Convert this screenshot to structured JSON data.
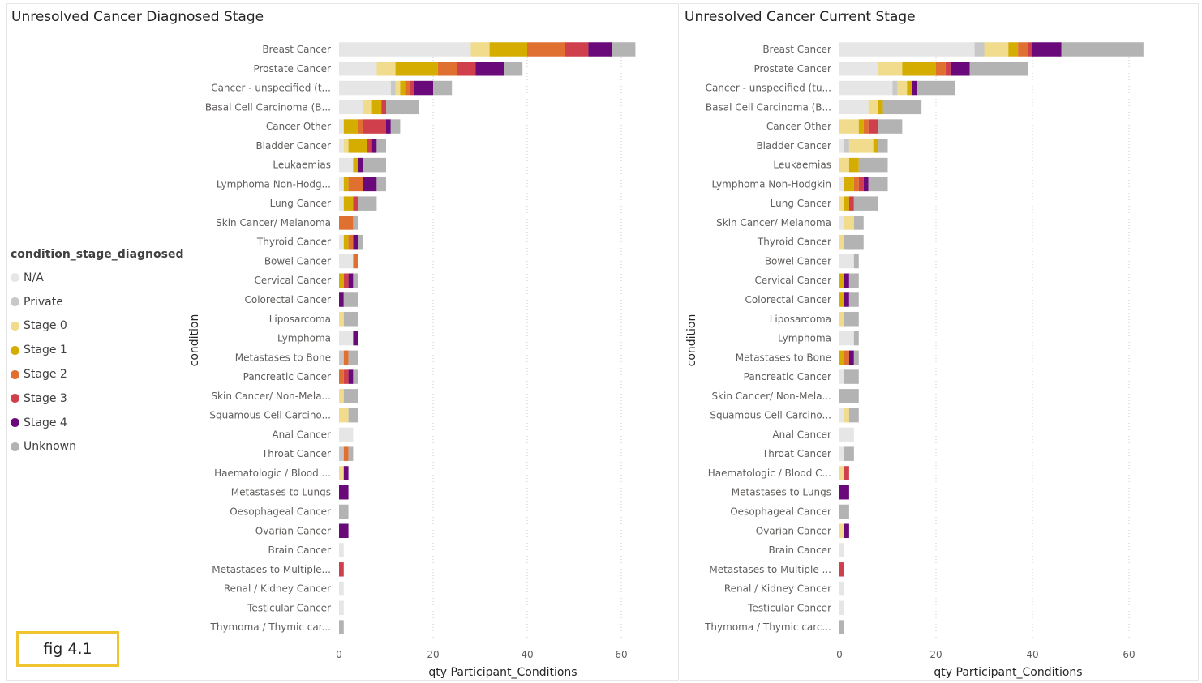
{
  "figure_label": "fig 4.1",
  "legend": {
    "title": "condition_stage_diagnosed",
    "items": [
      {
        "label": "N/A",
        "color": "#e6e6e6"
      },
      {
        "label": "Private",
        "color": "#c8c8c8"
      },
      {
        "label": "Stage 0",
        "color": "#f0dc8c"
      },
      {
        "label": "Stage 1",
        "color": "#d4ad00"
      },
      {
        "label": "Stage 2",
        "color": "#e07030"
      },
      {
        "label": "Stage 3",
        "color": "#d0404c"
      },
      {
        "label": "Stage 4",
        "color": "#6a0a7a"
      },
      {
        "label": "Unknown",
        "color": "#b3b3b3"
      }
    ]
  },
  "chart_data": [
    {
      "type": "bar",
      "orientation": "horizontal",
      "stacked": true,
      "title": "Unresolved Cancer Diagnosed Stage",
      "xlabel": "qty Participant_Conditions",
      "ylabel": "condition",
      "xlim": [
        0,
        63
      ],
      "xticks": [
        0,
        20,
        40,
        60
      ],
      "series_names": [
        "N/A",
        "Private",
        "Stage 0",
        "Stage 1",
        "Stage 2",
        "Stage 3",
        "Stage 4",
        "Unknown"
      ],
      "categories": [
        "Breast Cancer",
        "Prostate Cancer",
        "Cancer - unspecified (t...",
        "Basal Cell Carcinoma (B...",
        "Cancer Other",
        "Bladder Cancer",
        "Leukaemias",
        "Lymphoma Non-Hodg...",
        "Lung Cancer",
        "Skin Cancer/ Melanoma",
        "Thyroid Cancer",
        "Bowel Cancer",
        "Cervical Cancer",
        "Colorectal Cancer",
        "Liposarcoma",
        "Lymphoma",
        "Metastases to Bone",
        "Pancreatic Cancer",
        "Skin Cancer/ Non-Mela...",
        "Squamous Cell Carcino...",
        "Anal Cancer",
        "Throat Cancer",
        "Haematologic / Blood ...",
        "Metastases to Lungs",
        "Oesophageal Cancer",
        "Ovarian Cancer",
        "Brain Cancer",
        "Metastases to Multiple...",
        "Renal / Kidney Cancer",
        "Testicular Cancer",
        "Thymoma / Thymic car..."
      ],
      "values": [
        [
          28,
          0,
          4,
          8,
          8,
          5,
          5,
          5
        ],
        [
          8,
          0,
          4,
          9,
          4,
          4,
          6,
          4
        ],
        [
          11,
          1,
          1,
          1,
          1,
          1,
          4,
          4
        ],
        [
          5,
          0,
          2,
          2,
          0,
          1,
          0,
          7
        ],
        [
          1,
          0,
          0,
          3,
          1,
          5,
          1,
          2
        ],
        [
          1,
          0,
          1,
          4,
          0,
          1,
          1,
          2
        ],
        [
          3,
          0,
          0,
          1,
          0,
          0,
          1,
          5
        ],
        [
          1,
          0,
          0,
          1,
          3,
          0,
          3,
          2
        ],
        [
          1,
          0,
          0,
          2,
          0,
          1,
          0,
          4
        ],
        [
          0,
          0,
          0,
          0,
          3,
          0,
          0,
          1
        ],
        [
          1,
          0,
          0,
          1,
          1,
          0,
          1,
          1
        ],
        [
          3,
          0,
          0,
          0,
          1,
          0,
          0,
          0
        ],
        [
          0,
          0,
          0,
          1,
          0,
          1,
          1,
          1
        ],
        [
          0,
          0,
          0,
          0,
          0,
          0,
          1,
          3
        ],
        [
          0,
          0,
          1,
          0,
          0,
          0,
          0,
          3
        ],
        [
          3,
          0,
          0,
          0,
          0,
          0,
          1,
          0
        ],
        [
          0,
          1,
          0,
          0,
          1,
          0,
          0,
          2
        ],
        [
          0,
          0,
          0,
          0,
          1,
          1,
          1,
          1
        ],
        [
          0,
          0,
          1,
          0,
          0,
          0,
          0,
          3
        ],
        [
          0,
          0,
          2,
          0,
          0,
          0,
          0,
          2
        ],
        [
          3,
          0,
          0,
          0,
          0,
          0,
          0,
          0
        ],
        [
          0,
          1,
          0,
          0,
          1,
          0,
          0,
          1
        ],
        [
          0,
          0,
          1,
          0,
          0,
          0,
          1,
          0
        ],
        [
          0,
          0,
          0,
          0,
          0,
          0,
          2,
          0
        ],
        [
          0,
          0,
          0,
          0,
          0,
          0,
          0,
          2
        ],
        [
          0,
          0,
          0,
          0,
          0,
          0,
          2,
          0
        ],
        [
          1,
          0,
          0,
          0,
          0,
          0,
          0,
          0
        ],
        [
          0,
          0,
          0,
          0,
          0,
          1,
          0,
          0
        ],
        [
          1,
          0,
          0,
          0,
          0,
          0,
          0,
          0
        ],
        [
          1,
          0,
          0,
          0,
          0,
          0,
          0,
          0
        ],
        [
          0,
          0,
          0,
          0,
          0,
          0,
          0,
          1
        ]
      ]
    },
    {
      "type": "bar",
      "orientation": "horizontal",
      "stacked": true,
      "title": "Unresolved Cancer Current Stage",
      "xlabel": "qty Participant_Conditions",
      "ylabel": "condition",
      "xlim": [
        0,
        63
      ],
      "xticks": [
        0,
        20,
        40,
        60
      ],
      "series_names": [
        "N/A",
        "Private",
        "Stage 0",
        "Stage 1",
        "Stage 2",
        "Stage 3",
        "Stage 4",
        "Unknown"
      ],
      "categories": [
        "Breast Cancer",
        "Prostate Cancer",
        "Cancer - unspecified (tu...",
        "Basal Cell Carcinoma (B...",
        "Cancer Other",
        "Bladder Cancer",
        "Leukaemias",
        "Lymphoma Non-Hodgkin",
        "Lung Cancer",
        "Skin Cancer/ Melanoma",
        "Thyroid Cancer",
        "Bowel Cancer",
        "Cervical Cancer",
        "Colorectal Cancer",
        "Liposarcoma",
        "Lymphoma",
        "Metastases to Bone",
        "Pancreatic Cancer",
        "Skin Cancer/ Non-Mela...",
        "Squamous Cell Carcino...",
        "Anal Cancer",
        "Throat Cancer",
        "Haematologic / Blood C...",
        "Metastases to Lungs",
        "Oesophageal Cancer",
        "Ovarian Cancer",
        "Brain Cancer",
        "Metastases to Multiple ...",
        "Renal / Kidney Cancer",
        "Testicular Cancer",
        "Thymoma / Thymic carc..."
      ],
      "values": [
        [
          28,
          2,
          5,
          2,
          2,
          1,
          6,
          17
        ],
        [
          8,
          0,
          5,
          7,
          2,
          1,
          4,
          12
        ],
        [
          11,
          1,
          2,
          1,
          0,
          0,
          1,
          8
        ],
        [
          6,
          0,
          2,
          1,
          0,
          0,
          0,
          8
        ],
        [
          0,
          0,
          4,
          1,
          1,
          2,
          0,
          5
        ],
        [
          1,
          1,
          5,
          1,
          0,
          0,
          0,
          2
        ],
        [
          0,
          0,
          2,
          2,
          0,
          0,
          0,
          6
        ],
        [
          1,
          0,
          0,
          2,
          1,
          1,
          1,
          4
        ],
        [
          0,
          0,
          1,
          1,
          0,
          1,
          0,
          5
        ],
        [
          1,
          0,
          2,
          0,
          0,
          0,
          0,
          2
        ],
        [
          0,
          0,
          1,
          0,
          0,
          0,
          0,
          4
        ],
        [
          3,
          0,
          0,
          0,
          0,
          0,
          0,
          1
        ],
        [
          0,
          0,
          0,
          1,
          0,
          0,
          1,
          2
        ],
        [
          0,
          0,
          0,
          1,
          0,
          0,
          1,
          2
        ],
        [
          0,
          0,
          1,
          0,
          0,
          0,
          0,
          3
        ],
        [
          3,
          0,
          0,
          0,
          0,
          0,
          0,
          1
        ],
        [
          0,
          0,
          0,
          1,
          1,
          0,
          1,
          1
        ],
        [
          1,
          0,
          0,
          0,
          0,
          0,
          0,
          3
        ],
        [
          0,
          0,
          0,
          0,
          0,
          0,
          0,
          4
        ],
        [
          1,
          0,
          1,
          0,
          0,
          0,
          0,
          2
        ],
        [
          3,
          0,
          0,
          0,
          0,
          0,
          0,
          0
        ],
        [
          1,
          0,
          0,
          0,
          0,
          0,
          0,
          2
        ],
        [
          0,
          0,
          1,
          0,
          0,
          1,
          0,
          0
        ],
        [
          0,
          0,
          0,
          0,
          0,
          0,
          2,
          0
        ],
        [
          0,
          0,
          0,
          0,
          0,
          0,
          0,
          2
        ],
        [
          0,
          0,
          1,
          0,
          0,
          0,
          1,
          0
        ],
        [
          1,
          0,
          0,
          0,
          0,
          0,
          0,
          0
        ],
        [
          0,
          0,
          0,
          0,
          0,
          1,
          0,
          0
        ],
        [
          1,
          0,
          0,
          0,
          0,
          0,
          0,
          0
        ],
        [
          1,
          0,
          0,
          0,
          0,
          0,
          0,
          0
        ],
        [
          0,
          0,
          0,
          0,
          0,
          0,
          0,
          1
        ]
      ]
    }
  ]
}
